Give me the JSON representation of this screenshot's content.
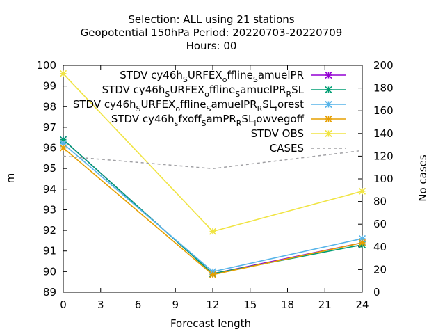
{
  "chart_data": {
    "type": "line",
    "title_lines": [
      "Selection: ALL using    21 stations",
      "Geopotential 150hPa   Period: 20220703-20220709",
      "Hours:  00"
    ],
    "xlabel": "Forecast length",
    "ylabel": "m",
    "y2label": "No cases",
    "x": [
      0,
      12,
      24
    ],
    "xticks": [
      "0",
      "3",
      "6",
      "9",
      "12",
      "15",
      "18",
      "21",
      "24"
    ],
    "xlim": [
      0,
      24
    ],
    "ylim": [
      89,
      100
    ],
    "y2lim": [
      0,
      200
    ],
    "yticks": [
      "89",
      "90",
      "91",
      "92",
      "93",
      "94",
      "95",
      "96",
      "97",
      "98",
      "99",
      "100"
    ],
    "y2ticks": [
      "0",
      "20",
      "40",
      "60",
      "80",
      "100",
      "120",
      "140",
      "160",
      "180",
      "200"
    ],
    "legend_position": "top-right",
    "series": [
      {
        "name": "STDV cy46h_S URFEX_o ffline_S amuelPR",
        "legend_parts": [
          [
            "STDV cy46h",
            ""
          ],
          [
            "S",
            "sub"
          ],
          [
            "URFEX",
            ""
          ],
          [
            "o",
            "sub"
          ],
          [
            "ffline",
            ""
          ],
          [
            "S",
            "sub"
          ],
          [
            "amuelPR",
            ""
          ]
        ],
        "values": [
          96.4,
          89.9,
          91.4
        ],
        "color": "#9400d3",
        "marker": "x-star",
        "axis": "y"
      },
      {
        "name": "STDV cy46h_S URFEX_o ffline_S amuelPR_R SL",
        "legend_parts": [
          [
            "STDV cy46h",
            ""
          ],
          [
            "S",
            "sub"
          ],
          [
            "URFEX",
            ""
          ],
          [
            "o",
            "sub"
          ],
          [
            "ffline",
            ""
          ],
          [
            "S",
            "sub"
          ],
          [
            "amuelPR",
            ""
          ],
          [
            "R",
            "sub"
          ],
          [
            "SL",
            ""
          ]
        ],
        "values": [
          96.4,
          89.9,
          91.3
        ],
        "color": "#009e73",
        "marker": "x-star",
        "axis": "y"
      },
      {
        "name": "STDV cy46h_S URFEX_o ffline_S amuelPR_R SL_f orest",
        "legend_parts": [
          [
            "STDV cy46h",
            ""
          ],
          [
            "S",
            "sub"
          ],
          [
            "URFEX",
            ""
          ],
          [
            "o",
            "sub"
          ],
          [
            "ffline",
            ""
          ],
          [
            "S",
            "sub"
          ],
          [
            "amuelPR",
            ""
          ],
          [
            "R",
            "sub"
          ],
          [
            "SL",
            ""
          ],
          [
            "f",
            "sub"
          ],
          [
            "orest",
            ""
          ]
        ],
        "values": [
          96.2,
          90.0,
          91.6
        ],
        "color": "#56b4e9",
        "marker": "x-star",
        "axis": "y"
      },
      {
        "name": "STDV cy46h_s fxoff_S amPR_R SL_l owvegoff",
        "legend_parts": [
          [
            "STDV cy46h",
            ""
          ],
          [
            "s",
            "sub"
          ],
          [
            "fxoff",
            ""
          ],
          [
            "S",
            "sub"
          ],
          [
            "amPR",
            ""
          ],
          [
            "R",
            "sub"
          ],
          [
            "SL",
            ""
          ],
          [
            "l",
            "sub"
          ],
          [
            "owvegoff",
            ""
          ]
        ],
        "values": [
          96.0,
          89.85,
          91.4
        ],
        "color": "#e69f00",
        "marker": "x-star",
        "axis": "y"
      },
      {
        "name": "STDV OBS",
        "legend_parts": [
          [
            "STDV OBS",
            ""
          ]
        ],
        "values": [
          99.6,
          91.95,
          93.9
        ],
        "color": "#f0e442",
        "marker": "x-star",
        "axis": "y"
      },
      {
        "name": "CASES",
        "legend_parts": [
          [
            "CASES",
            ""
          ]
        ],
        "values": [
          120,
          109,
          125
        ],
        "color": "#a0a0a4",
        "marker": "none",
        "dashed": true,
        "axis": "y2"
      }
    ]
  }
}
